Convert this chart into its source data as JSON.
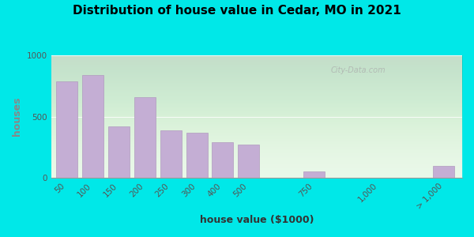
{
  "title": "Distribution of house value in Cedar, MO in 2021",
  "xlabel": "house value ($1000)",
  "ylabel": "houses",
  "categories": [
    "50",
    "100",
    "150",
    "200",
    "250",
    "300",
    "400",
    "500",
    "750",
    "1,000",
    "> 1,000"
  ],
  "values": [
    790,
    840,
    420,
    660,
    390,
    370,
    290,
    270,
    55,
    0,
    100
  ],
  "bar_color": "#c4aed4",
  "bar_edge_color": "#b09abe",
  "ylim": [
    0,
    1000
  ],
  "yticks": [
    0,
    500,
    1000
  ],
  "background_outer": "#00e8e8",
  "background_inner": "#e8f8e8",
  "title_fontsize": 11,
  "axis_label_fontsize": 9,
  "tick_fontsize": 7.5,
  "ylabel_color": "#888888",
  "watermark": "City-Data.com"
}
